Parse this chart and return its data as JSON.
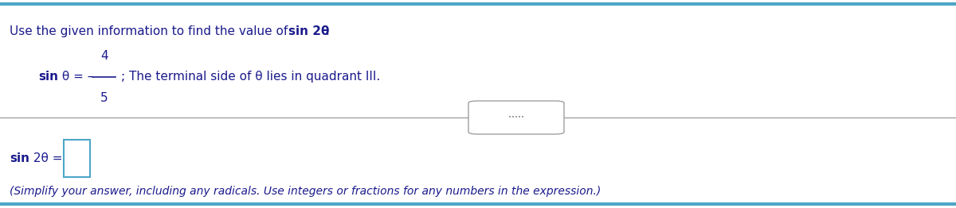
{
  "bg_color": "#ffffff",
  "top_border_color": "#4da6c8",
  "bottom_border_color": "#4da6c8",
  "divider_color": "#a0a0a0",
  "title_text_normal": "Use the given information to find the value of ",
  "title_text_bold": "sin 2θ",
  "title_text_end": ".",
  "given_label_bold": "sin",
  "given_label_normal": " θ = – ",
  "fraction_num": "4",
  "fraction_den": "5",
  "given_rest": "; The terminal side of θ lies in quadrant III.",
  "dots_text": "•••••",
  "answer_label_bold": "sin",
  "answer_label_normal": " 2θ =",
  "answer_box_color": "#4da6c8",
  "note_text": "(Simplify your answer, including any radicals. Use integers or fractions for any numbers in the expression.)",
  "note_color": "#1a1a8c",
  "text_color": "#1a1a8c",
  "font_size_title": 11,
  "font_size_body": 11,
  "font_size_note": 10
}
